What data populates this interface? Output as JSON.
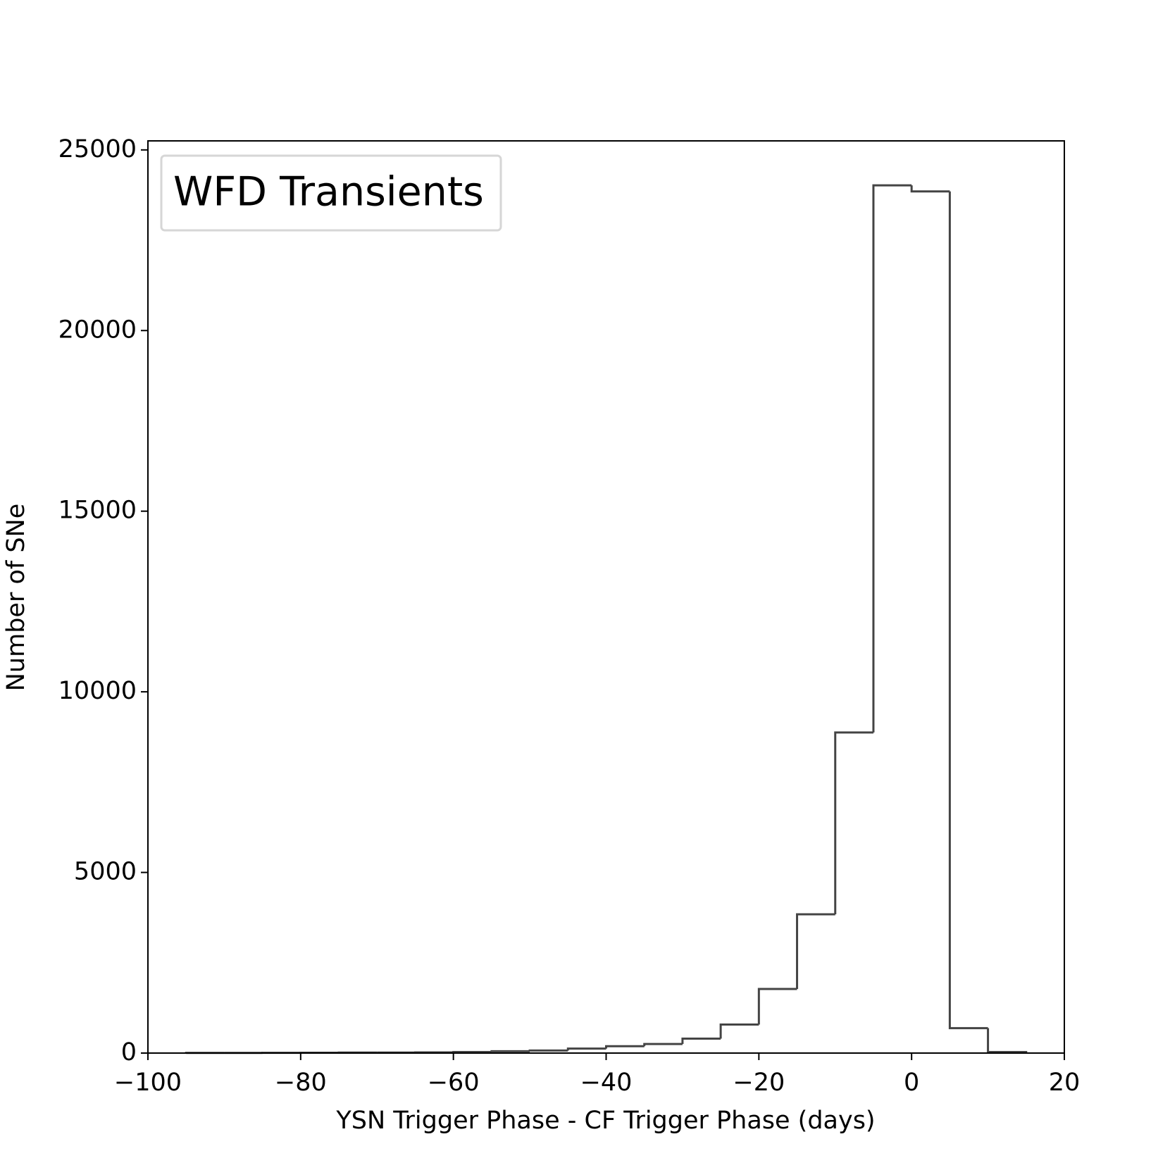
{
  "chart_data": {
    "type": "histogram",
    "xlabel": "YSN Trigger Phase - CF Trigger Phase (days)",
    "ylabel": "Number of SNe",
    "legend_title": "WFD Transients",
    "legend_position": "upper left",
    "color": "#444444",
    "bins": [
      -95,
      -90,
      -85,
      -80,
      -75,
      -70,
      -65,
      -60,
      -55,
      -50,
      -45,
      -40,
      -35,
      -30,
      -25,
      -20,
      -15,
      -10,
      -5,
      0,
      5,
      10,
      15
    ],
    "counts": [
      5,
      5,
      8,
      10,
      15,
      15,
      20,
      30,
      50,
      70,
      125,
      190,
      250,
      400,
      790,
      1775,
      3840,
      8875,
      24020,
      23850,
      690,
      30
    ],
    "xlim": [
      -100,
      20
    ],
    "xticks": [
      {
        "value": -100,
        "label": "−100"
      },
      {
        "value": -80,
        "label": "−80"
      },
      {
        "value": -60,
        "label": "−60"
      },
      {
        "value": -40,
        "label": "−40"
      },
      {
        "value": -20,
        "label": "−20"
      },
      0,
      20
    ],
    "ylim": [
      0,
      25250
    ],
    "yticks": [
      0,
      5000,
      10000,
      15000,
      20000,
      25000
    ]
  }
}
